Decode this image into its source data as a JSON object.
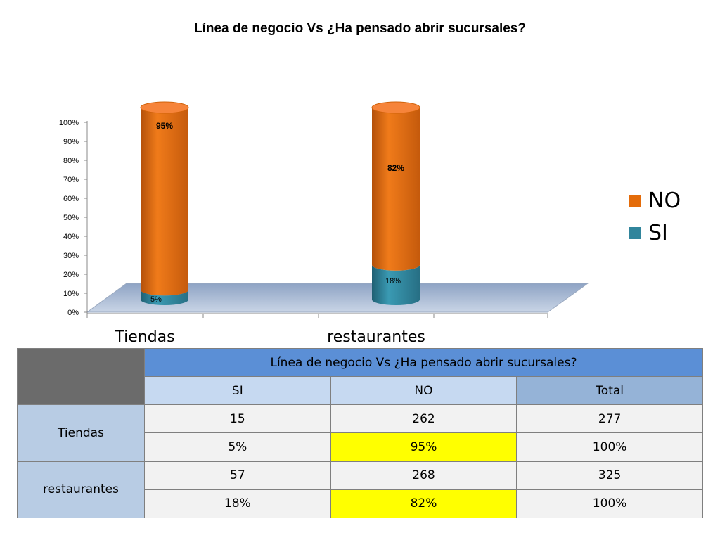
{
  "chart_data": {
    "type": "bar",
    "stacked": true,
    "title": "Línea de negocio Vs ¿Ha pensado abrir  sucursales?",
    "categories": [
      "Tiendas",
      "restaurantes"
    ],
    "series": [
      {
        "name": "SI",
        "values": [
          5,
          18
        ],
        "labels": [
          "5%",
          "18%"
        ],
        "color": "#31859c"
      },
      {
        "name": "NO",
        "values": [
          95,
          82
        ],
        "labels": [
          "95%",
          "82%"
        ],
        "color": "#e46c0a"
      }
    ],
    "ylim": [
      0,
      100
    ],
    "yticks": [
      "0%",
      "10%",
      "20%",
      "30%",
      "40%",
      "50%",
      "60%",
      "70%",
      "80%",
      "90%",
      "100%"
    ],
    "legend_position": "right",
    "legend": [
      {
        "name": "NO",
        "color": "#e46c0a"
      },
      {
        "name": "SI",
        "color": "#31859c"
      }
    ]
  },
  "table": {
    "header_title": "Línea de negocio Vs ¿Ha pensado abrir  sucursales?",
    "columns": [
      "SI",
      "NO",
      "Total"
    ],
    "rows": [
      {
        "label": "Tiendas",
        "counts": [
          "15",
          "262",
          "277"
        ],
        "percents": [
          "5%",
          "95%",
          "100%"
        ]
      },
      {
        "label": "restaurantes",
        "counts": [
          "57",
          "268",
          "325"
        ],
        "percents": [
          "18%",
          "82%",
          "100%"
        ]
      }
    ]
  }
}
